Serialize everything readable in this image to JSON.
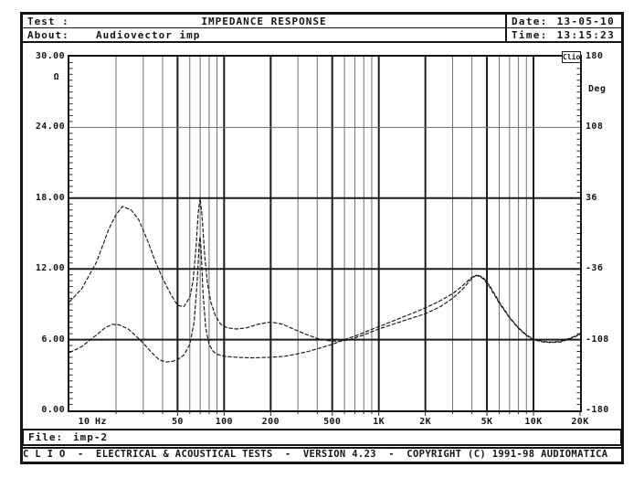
{
  "header": {
    "test_label": "Test :",
    "test_value": "IMPEDANCE RESPONSE",
    "about_label": "About:",
    "about_value": "Audiovector imp",
    "date_label": "Date:",
    "date_value": "13-05-10",
    "time_label": "Time:",
    "time_value": "13:15:23"
  },
  "badge": {
    "text": "Clio"
  },
  "footer": {
    "file_label": "File:",
    "file_value": "imp-2",
    "status_text": "C L I O  -  ELECTRICAL & ACOUSTICAL TESTS  -  VERSION 4.23  -  COPYRIGHT (C) 1991-98 AUDIOMATICA"
  },
  "chart_data": {
    "type": "line",
    "title": "IMPEDANCE RESPONSE",
    "x_scale": "log",
    "x_range": [
      10,
      20000
    ],
    "x_unit": "Hz",
    "y_left_unit": "Ω",
    "y_left_range": [
      0,
      30
    ],
    "y_left_ticks": [
      {
        "v": 30,
        "label": "30.00"
      },
      {
        "v": 24,
        "label": "24.00"
      },
      {
        "v": 18,
        "label": "18.00"
      },
      {
        "v": 12,
        "label": "12.00"
      },
      {
        "v": 6,
        "label": "6.00"
      },
      {
        "v": 0,
        "label": "0.00"
      }
    ],
    "y_right_unit": "Deg",
    "y_right_range": [
      -180,
      180
    ],
    "y_right_ticks": [
      {
        "deg": 180,
        "label": "180"
      },
      {
        "deg": 108,
        "label": "108"
      },
      {
        "deg": 36,
        "label": "36"
      },
      {
        "deg": -36,
        "label": "-36"
      },
      {
        "deg": -108,
        "label": "-108"
      },
      {
        "deg": -180,
        "label": "-180"
      }
    ],
    "x_ticks": [
      {
        "f": 10,
        "label": "10"
      },
      {
        "f": 50,
        "label": "50"
      },
      {
        "f": 100,
        "label": "100"
      },
      {
        "f": 200,
        "label": "200"
      },
      {
        "f": 500,
        "label": "500"
      },
      {
        "f": 1000,
        "label": "1K"
      },
      {
        "f": 2000,
        "label": "2K"
      },
      {
        "f": 5000,
        "label": "5K"
      },
      {
        "f": 10000,
        "label": "10K"
      },
      {
        "f": 20000,
        "label": "20K"
      }
    ],
    "x_gridlines": [
      20,
      30,
      40,
      50,
      60,
      70,
      80,
      90,
      100,
      200,
      300,
      400,
      500,
      600,
      700,
      800,
      900,
      1000,
      2000,
      3000,
      4000,
      5000,
      6000,
      7000,
      8000,
      9000,
      10000
    ],
    "x_gridlines_major": [
      50,
      100,
      200,
      500,
      1000,
      2000,
      5000,
      10000
    ],
    "y_gridlines": [
      {
        "v": 24,
        "major": false
      },
      {
        "v": 18,
        "major": true
      },
      {
        "v": 12,
        "major": true
      },
      {
        "v": 6,
        "major": true
      }
    ],
    "grid": true,
    "legend": "none",
    "series": [
      {
        "name": "impedance-magnitude",
        "unit": "ohm (left axis)",
        "points": [
          [
            10,
            9.2
          ],
          [
            12,
            10.3
          ],
          [
            15,
            12.6
          ],
          [
            18,
            15.4
          ],
          [
            20,
            16.6
          ],
          [
            22,
            17.3
          ],
          [
            25,
            17.0
          ],
          [
            28,
            16.2
          ],
          [
            32,
            14.4
          ],
          [
            36,
            12.6
          ],
          [
            40,
            11.2
          ],
          [
            45,
            9.9
          ],
          [
            50,
            8.9
          ],
          [
            55,
            8.8
          ],
          [
            60,
            9.6
          ],
          [
            63,
            11.0
          ],
          [
            66,
            14.0
          ],
          [
            68,
            16.8
          ],
          [
            70,
            18.0
          ],
          [
            72,
            16.5
          ],
          [
            75,
            13.0
          ],
          [
            78,
            10.8
          ],
          [
            82,
            9.2
          ],
          [
            88,
            8.0
          ],
          [
            95,
            7.3
          ],
          [
            105,
            7.0
          ],
          [
            120,
            6.9
          ],
          [
            140,
            7.0
          ],
          [
            165,
            7.3
          ],
          [
            200,
            7.5
          ],
          [
            240,
            7.3
          ],
          [
            280,
            6.9
          ],
          [
            330,
            6.5
          ],
          [
            400,
            6.1
          ],
          [
            480,
            5.9
          ],
          [
            560,
            5.85
          ],
          [
            650,
            6.0
          ],
          [
            800,
            6.4
          ],
          [
            1000,
            6.9
          ],
          [
            1300,
            7.4
          ],
          [
            1700,
            7.9
          ],
          [
            2000,
            8.2
          ],
          [
            2500,
            8.8
          ],
          [
            3000,
            9.5
          ],
          [
            3500,
            10.3
          ],
          [
            4000,
            11.2
          ],
          [
            4300,
            11.5
          ],
          [
            4700,
            11.3
          ],
          [
            5200,
            10.6
          ],
          [
            6000,
            9.2
          ],
          [
            7000,
            7.9
          ],
          [
            8000,
            7.0
          ],
          [
            9000,
            6.4
          ],
          [
            10000,
            6.05
          ],
          [
            11500,
            5.85
          ],
          [
            13000,
            5.8
          ],
          [
            15000,
            5.85
          ],
          [
            17000,
            6.1
          ],
          [
            19000,
            6.35
          ],
          [
            20000,
            6.5
          ]
        ]
      },
      {
        "name": "impedance-phase",
        "unit": "deg (right axis), plotted on left scale as (deg+180)/12",
        "points": [
          [
            10,
            4.9
          ],
          [
            12,
            5.4
          ],
          [
            15,
            6.4
          ],
          [
            17,
            7.0
          ],
          [
            19,
            7.3
          ],
          [
            21,
            7.25
          ],
          [
            24,
            6.9
          ],
          [
            27,
            6.3
          ],
          [
            30,
            5.7
          ],
          [
            34,
            4.9
          ],
          [
            38,
            4.3
          ],
          [
            42,
            4.1
          ],
          [
            46,
            4.15
          ],
          [
            50,
            4.3
          ],
          [
            55,
            4.7
          ],
          [
            60,
            5.6
          ],
          [
            64,
            7.5
          ],
          [
            67,
            11.0
          ],
          [
            69,
            14.2
          ],
          [
            70,
            14.7
          ],
          [
            71,
            13.5
          ],
          [
            73,
            10.0
          ],
          [
            76,
            7.0
          ],
          [
            80,
            5.6
          ],
          [
            85,
            5.0
          ],
          [
            90,
            4.75
          ],
          [
            100,
            4.6
          ],
          [
            120,
            4.5
          ],
          [
            150,
            4.45
          ],
          [
            200,
            4.5
          ],
          [
            250,
            4.6
          ],
          [
            300,
            4.8
          ],
          [
            350,
            5.0
          ],
          [
            420,
            5.3
          ],
          [
            500,
            5.6
          ],
          [
            600,
            6.0
          ],
          [
            700,
            6.3
          ],
          [
            800,
            6.6
          ],
          [
            1000,
            7.1
          ],
          [
            1300,
            7.7
          ],
          [
            1700,
            8.3
          ],
          [
            2000,
            8.7
          ],
          [
            2500,
            9.3
          ],
          [
            3000,
            9.9
          ],
          [
            3500,
            10.6
          ],
          [
            4000,
            11.3
          ],
          [
            4300,
            11.45
          ],
          [
            4700,
            11.2
          ],
          [
            5200,
            10.5
          ],
          [
            6000,
            9.1
          ],
          [
            7000,
            7.85
          ],
          [
            8000,
            6.95
          ],
          [
            9000,
            6.35
          ],
          [
            10000,
            6.0
          ],
          [
            11500,
            5.8
          ],
          [
            13000,
            5.75
          ],
          [
            15000,
            5.8
          ],
          [
            17000,
            6.05
          ],
          [
            19000,
            6.3
          ],
          [
            20000,
            6.45
          ]
        ]
      }
    ]
  }
}
